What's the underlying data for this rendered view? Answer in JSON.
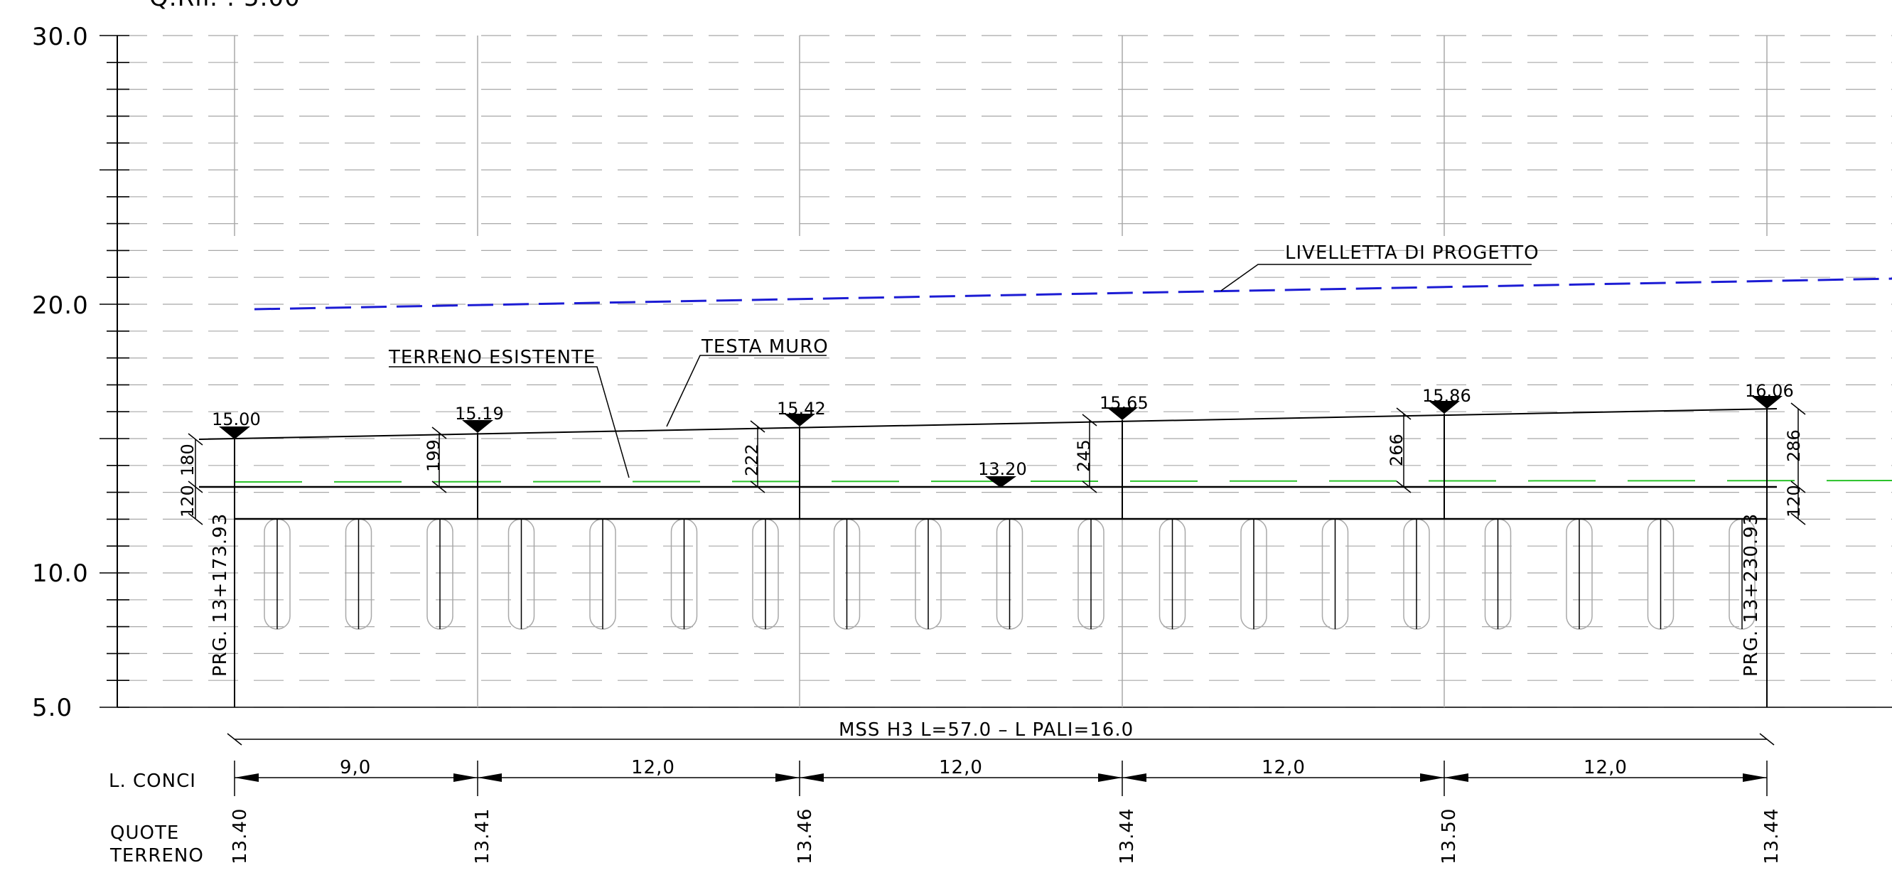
{
  "header_fragment": "Q.Rif. : 5.00",
  "y_axis": {
    "ticks": [
      "30.0",
      "20.0",
      "10.0",
      "5.0"
    ]
  },
  "annotations": {
    "livelletta": "LIVELLETTA DI PROGETTO",
    "terreno": "TERRENO ESISTENTE",
    "testa_muro": "TESTA MURO",
    "wall_title": "MSS H3 L=57.0 – L PALI=16.0"
  },
  "stations": {
    "start": "PRG. 13+173.93",
    "end": "PRG. 13+230.93"
  },
  "elevations": [
    {
      "label": "15.00"
    },
    {
      "label": "15.19"
    },
    {
      "label": "15.42"
    },
    {
      "label": "15.65"
    },
    {
      "label": "15.86"
    },
    {
      "label": "16.06"
    }
  ],
  "mid_elevation": "13.20",
  "heights": [
    "180",
    "199",
    "222",
    "245",
    "266",
    "286"
  ],
  "foundation": [
    "120",
    "120"
  ],
  "rows": {
    "conci_label": "L. CONCI",
    "quote_label_1": "QUOTE",
    "quote_label_2": "TERRENO"
  },
  "conci": [
    "9,0",
    "12,0",
    "12,0",
    "12,0",
    "12,0"
  ],
  "quote_terreno": [
    "13.40",
    "13.41",
    "13.46",
    "13.44",
    "13.50",
    "13.44"
  ],
  "colors": {
    "design_line": "#1c1cd4",
    "terrain_line": "#2bc22b",
    "grid": "#a8a8a8",
    "ink": "#000000"
  }
}
